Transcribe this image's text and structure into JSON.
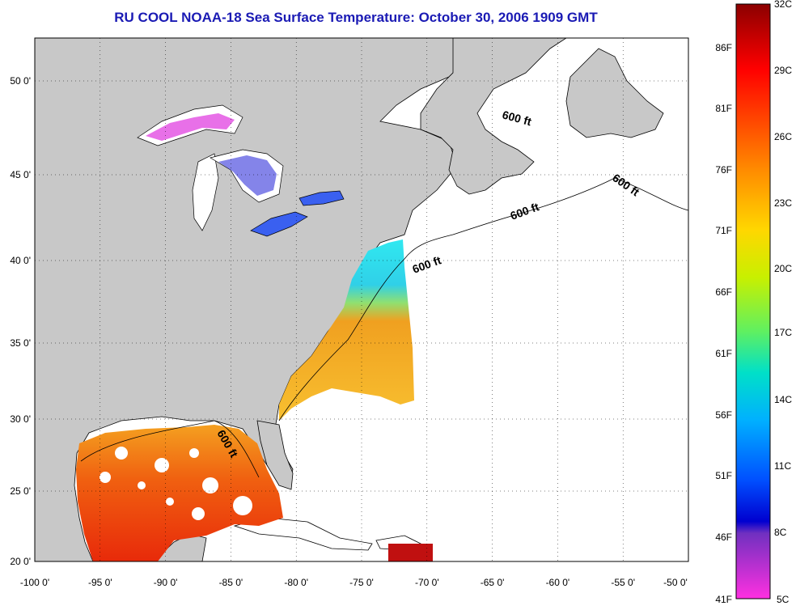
{
  "title": "RU COOL  NOAA-18  Sea Surface Temperature:  October 30, 2006 1909 GMT",
  "map": {
    "lon_range": [
      -100,
      -50
    ],
    "lat_range": [
      20,
      52.5
    ],
    "x_ticks": [
      "-100 0'",
      "-95 0'",
      "-90 0'",
      "-85 0'",
      "-80 0'",
      "-75 0'",
      "-70 0'",
      "-65 0'",
      "-60 0'",
      "-55 0'",
      "-50 0'"
    ],
    "y_ticks": [
      "50 0'",
      "45 0'",
      "40 0'",
      "35 0'",
      "30 0'",
      "25 0'",
      "20 0'"
    ],
    "contour_labels": [
      "600 ft",
      "600 ft",
      "600 ft",
      "600 ft",
      "600 ft"
    ],
    "land_color": "#c8c8c8",
    "ocean_color": "#ffffff"
  },
  "colorbar": {
    "celsius_labels": [
      "32C",
      "29C",
      "26C",
      "23C",
      "20C",
      "17C",
      "14C",
      "11C",
      "8C",
      "5C"
    ],
    "fahrenheit_labels": [
      "86F",
      "81F",
      "76F",
      "71F",
      "66F",
      "61F",
      "56F",
      "51F",
      "46F",
      "41F"
    ]
  }
}
